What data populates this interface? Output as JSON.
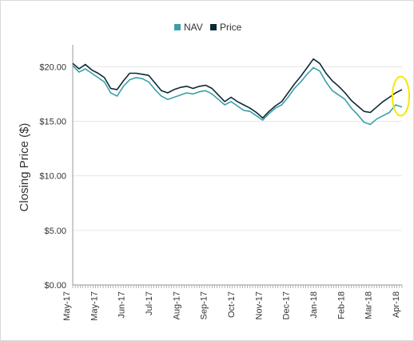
{
  "chart_data": {
    "type": "line",
    "ylabel": "Closing Price ($)",
    "ylim": [
      0,
      22
    ],
    "y_ticks": [
      0,
      5,
      10,
      15,
      20
    ],
    "y_tick_labels": [
      "$0.00",
      "$5.00",
      "$10.00",
      "$15.00",
      "$20.00"
    ],
    "x_tick_labels": [
      "May-17",
      "May-17",
      "Jun-17",
      "Jul-17",
      "Aug-17",
      "Sep-17",
      "Oct-17",
      "Nov-17",
      "Dec-17",
      "Jan-18",
      "Feb-18",
      "Mar-18",
      "Apr-18"
    ],
    "x_range": [
      "2017-04-28",
      "2018-04-27"
    ],
    "legend_position": "top-center",
    "grid": "horizontal",
    "series": [
      {
        "name": "NAV",
        "color": "#3aa0a8",
        "points": [
          [
            "2017-04-28",
            20.1
          ],
          [
            "2017-05-05",
            19.5
          ],
          [
            "2017-05-12",
            19.8
          ],
          [
            "2017-05-19",
            19.4
          ],
          [
            "2017-05-26",
            19.0
          ],
          [
            "2017-06-02",
            18.6
          ],
          [
            "2017-06-09",
            17.6
          ],
          [
            "2017-06-16",
            17.3
          ],
          [
            "2017-06-23",
            18.2
          ],
          [
            "2017-06-30",
            18.8
          ],
          [
            "2017-07-07",
            19.0
          ],
          [
            "2017-07-14",
            18.9
          ],
          [
            "2017-07-21",
            18.6
          ],
          [
            "2017-07-28",
            17.9
          ],
          [
            "2017-08-04",
            17.3
          ],
          [
            "2017-08-11",
            17.0
          ],
          [
            "2017-08-18",
            17.2
          ],
          [
            "2017-08-25",
            17.4
          ],
          [
            "2017-09-01",
            17.6
          ],
          [
            "2017-09-08",
            17.5
          ],
          [
            "2017-09-15",
            17.7
          ],
          [
            "2017-09-22",
            17.8
          ],
          [
            "2017-09-29",
            17.5
          ],
          [
            "2017-10-06",
            17.0
          ],
          [
            "2017-10-13",
            16.5
          ],
          [
            "2017-10-20",
            16.8
          ],
          [
            "2017-10-27",
            16.4
          ],
          [
            "2017-11-03",
            16.0
          ],
          [
            "2017-11-10",
            15.9
          ],
          [
            "2017-11-17",
            15.5
          ],
          [
            "2017-11-24",
            15.1
          ],
          [
            "2017-12-01",
            15.7
          ],
          [
            "2017-12-08",
            16.2
          ],
          [
            "2017-12-15",
            16.5
          ],
          [
            "2017-12-22",
            17.2
          ],
          [
            "2017-12-29",
            18.0
          ],
          [
            "2018-01-05",
            18.6
          ],
          [
            "2018-01-12",
            19.3
          ],
          [
            "2018-01-19",
            19.9
          ],
          [
            "2018-01-26",
            19.6
          ],
          [
            "2018-02-02",
            18.6
          ],
          [
            "2018-02-09",
            17.8
          ],
          [
            "2018-02-16",
            17.4
          ],
          [
            "2018-02-23",
            17.0
          ],
          [
            "2018-03-02",
            16.2
          ],
          [
            "2018-03-09",
            15.6
          ],
          [
            "2018-03-16",
            14.9
          ],
          [
            "2018-03-23",
            14.7
          ],
          [
            "2018-03-30",
            15.2
          ],
          [
            "2018-04-06",
            15.5
          ],
          [
            "2018-04-13",
            15.8
          ],
          [
            "2018-04-20",
            16.5
          ],
          [
            "2018-04-27",
            16.3
          ]
        ]
      },
      {
        "name": "Price",
        "color": "#0b2a35",
        "points": [
          [
            "2017-04-28",
            20.3
          ],
          [
            "2017-05-05",
            19.8
          ],
          [
            "2017-05-12",
            20.2
          ],
          [
            "2017-05-19",
            19.7
          ],
          [
            "2017-05-26",
            19.4
          ],
          [
            "2017-06-02",
            19.0
          ],
          [
            "2017-06-09",
            18.0
          ],
          [
            "2017-06-16",
            17.9
          ],
          [
            "2017-06-23",
            18.7
          ],
          [
            "2017-06-30",
            19.4
          ],
          [
            "2017-07-07",
            19.4
          ],
          [
            "2017-07-14",
            19.3
          ],
          [
            "2017-07-21",
            19.2
          ],
          [
            "2017-07-28",
            18.5
          ],
          [
            "2017-08-04",
            17.8
          ],
          [
            "2017-08-11",
            17.6
          ],
          [
            "2017-08-18",
            17.9
          ],
          [
            "2017-08-25",
            18.1
          ],
          [
            "2017-09-01",
            18.2
          ],
          [
            "2017-09-08",
            18.0
          ],
          [
            "2017-09-15",
            18.2
          ],
          [
            "2017-09-22",
            18.3
          ],
          [
            "2017-09-29",
            18.0
          ],
          [
            "2017-10-06",
            17.4
          ],
          [
            "2017-10-13",
            16.8
          ],
          [
            "2017-10-20",
            17.2
          ],
          [
            "2017-10-27",
            16.8
          ],
          [
            "2017-11-03",
            16.5
          ],
          [
            "2017-11-10",
            16.2
          ],
          [
            "2017-11-17",
            15.8
          ],
          [
            "2017-11-24",
            15.3
          ],
          [
            "2017-12-01",
            15.9
          ],
          [
            "2017-12-08",
            16.4
          ],
          [
            "2017-12-15",
            16.8
          ],
          [
            "2017-12-22",
            17.6
          ],
          [
            "2017-12-29",
            18.4
          ],
          [
            "2018-01-05",
            19.1
          ],
          [
            "2018-01-12",
            19.9
          ],
          [
            "2018-01-19",
            20.7
          ],
          [
            "2018-01-26",
            20.3
          ],
          [
            "2018-02-02",
            19.4
          ],
          [
            "2018-02-09",
            18.7
          ],
          [
            "2018-02-16",
            18.2
          ],
          [
            "2018-02-23",
            17.6
          ],
          [
            "2018-03-02",
            16.9
          ],
          [
            "2018-03-09",
            16.4
          ],
          [
            "2018-03-16",
            15.9
          ],
          [
            "2018-03-23",
            15.8
          ],
          [
            "2018-03-30",
            16.3
          ],
          [
            "2018-04-06",
            16.8
          ],
          [
            "2018-04-13",
            17.2
          ],
          [
            "2018-04-20",
            17.6
          ],
          [
            "2018-04-27",
            17.9
          ]
        ]
      }
    ],
    "annotation": {
      "type": "ellipse-highlight",
      "color": "#f5e800",
      "x_range": [
        "2018-04-19",
        "2018-04-27"
      ],
      "y_range": [
        15.8,
        18.8
      ]
    }
  }
}
